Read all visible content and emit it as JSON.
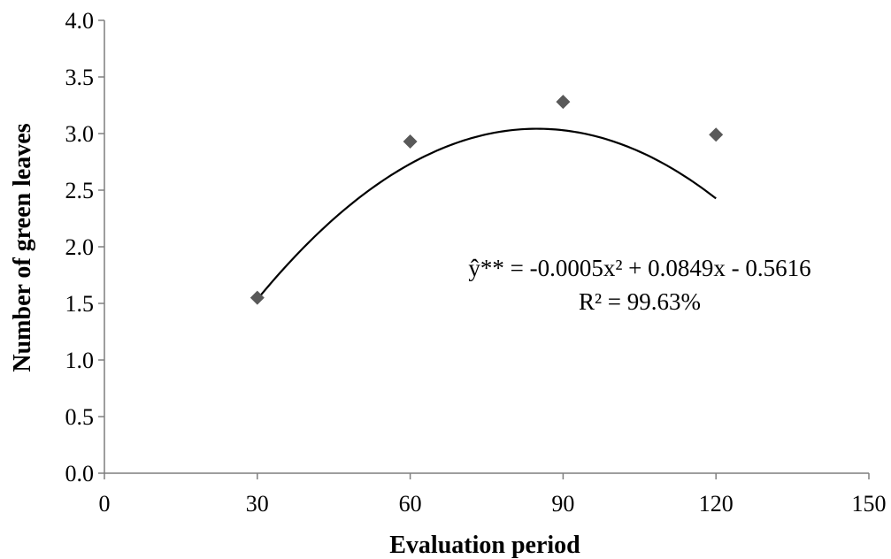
{
  "chart_data": {
    "type": "scatter",
    "xlabel": "Evaluation period",
    "ylabel": "Number of green leaves",
    "xlim": [
      0,
      150
    ],
    "ylim": [
      0,
      4.0
    ],
    "x_ticks": [
      "0",
      "30",
      "60",
      "90",
      "120",
      "150"
    ],
    "y_ticks": [
      "0.0",
      "0.5",
      "1.0",
      "1.5",
      "2.0",
      "2.5",
      "3.0",
      "3.5",
      "4.0"
    ],
    "x_tick_values": [
      0,
      30,
      60,
      90,
      120,
      150
    ],
    "y_tick_values": [
      0,
      0.5,
      1.0,
      1.5,
      2.0,
      2.5,
      3.0,
      3.5,
      4.0
    ],
    "points": [
      {
        "x": 30,
        "y": 1.55
      },
      {
        "x": 60,
        "y": 2.93
      },
      {
        "x": 90,
        "y": 3.28
      },
      {
        "x": 120,
        "y": 2.99
      }
    ],
    "trendline": {
      "type": "polynomial",
      "a": -0.0005,
      "b": 0.0849,
      "c": -0.5616,
      "x_range": [
        30,
        120
      ]
    },
    "equation": "ŷ** = -0.0005x² + 0.0849x - 0.5616",
    "r_squared": "R² = 99.63%",
    "marker_color": "#595959",
    "line_color": "#000000",
    "axis_color": "#7f7f7f",
    "grid": false,
    "legend": false
  }
}
